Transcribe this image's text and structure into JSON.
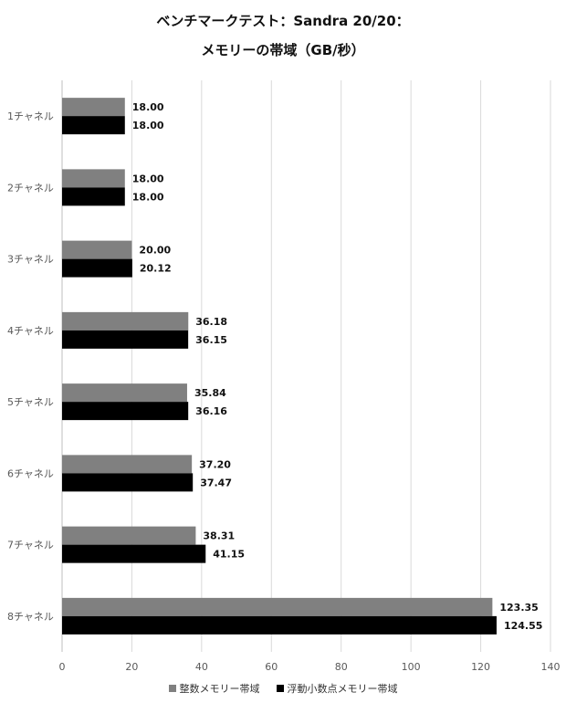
{
  "colors": {
    "series1": "#808080",
    "series2": "#000000",
    "grid": "#d9d9d9",
    "axis_text": "#595959"
  },
  "chart_data": {
    "type": "bar",
    "orientation": "horizontal",
    "title": "ベンチマークテスト：Sandra 20/20：",
    "subtitle": "メモリーの帯域（GB/秒）",
    "categories": [
      "1チャネル",
      "2チャネル",
      "3チャネル",
      "4チャネル",
      "5チャネル",
      "6チャネル",
      "7チャネル",
      "8チャネル"
    ],
    "series": [
      {
        "name": "整数メモリー帯域",
        "values": [
          18.0,
          18.0,
          20.0,
          36.18,
          35.84,
          37.2,
          38.31,
          123.35
        ]
      },
      {
        "name": "浮動小数点メモリー帯域",
        "values": [
          18.0,
          18.0,
          20.12,
          36.15,
          36.16,
          37.47,
          41.15,
          124.55
        ]
      }
    ],
    "value_labels": [
      [
        "18.00",
        "18.00",
        "20.00",
        "36.18",
        "35.84",
        "37.20",
        "38.31",
        "123.35"
      ],
      [
        "18.00",
        "18.00",
        "20.12",
        "36.15",
        "36.16",
        "37.47",
        "41.15",
        "124.55"
      ]
    ],
    "xlim": [
      0,
      140
    ],
    "xticks": [
      0,
      20,
      40,
      60,
      80,
      100,
      120,
      140
    ],
    "xtick_labels": [
      "0",
      "20",
      "40",
      "60",
      "80",
      "100",
      "120",
      "140"
    ],
    "grid": true,
    "legend_position": "bottom"
  }
}
